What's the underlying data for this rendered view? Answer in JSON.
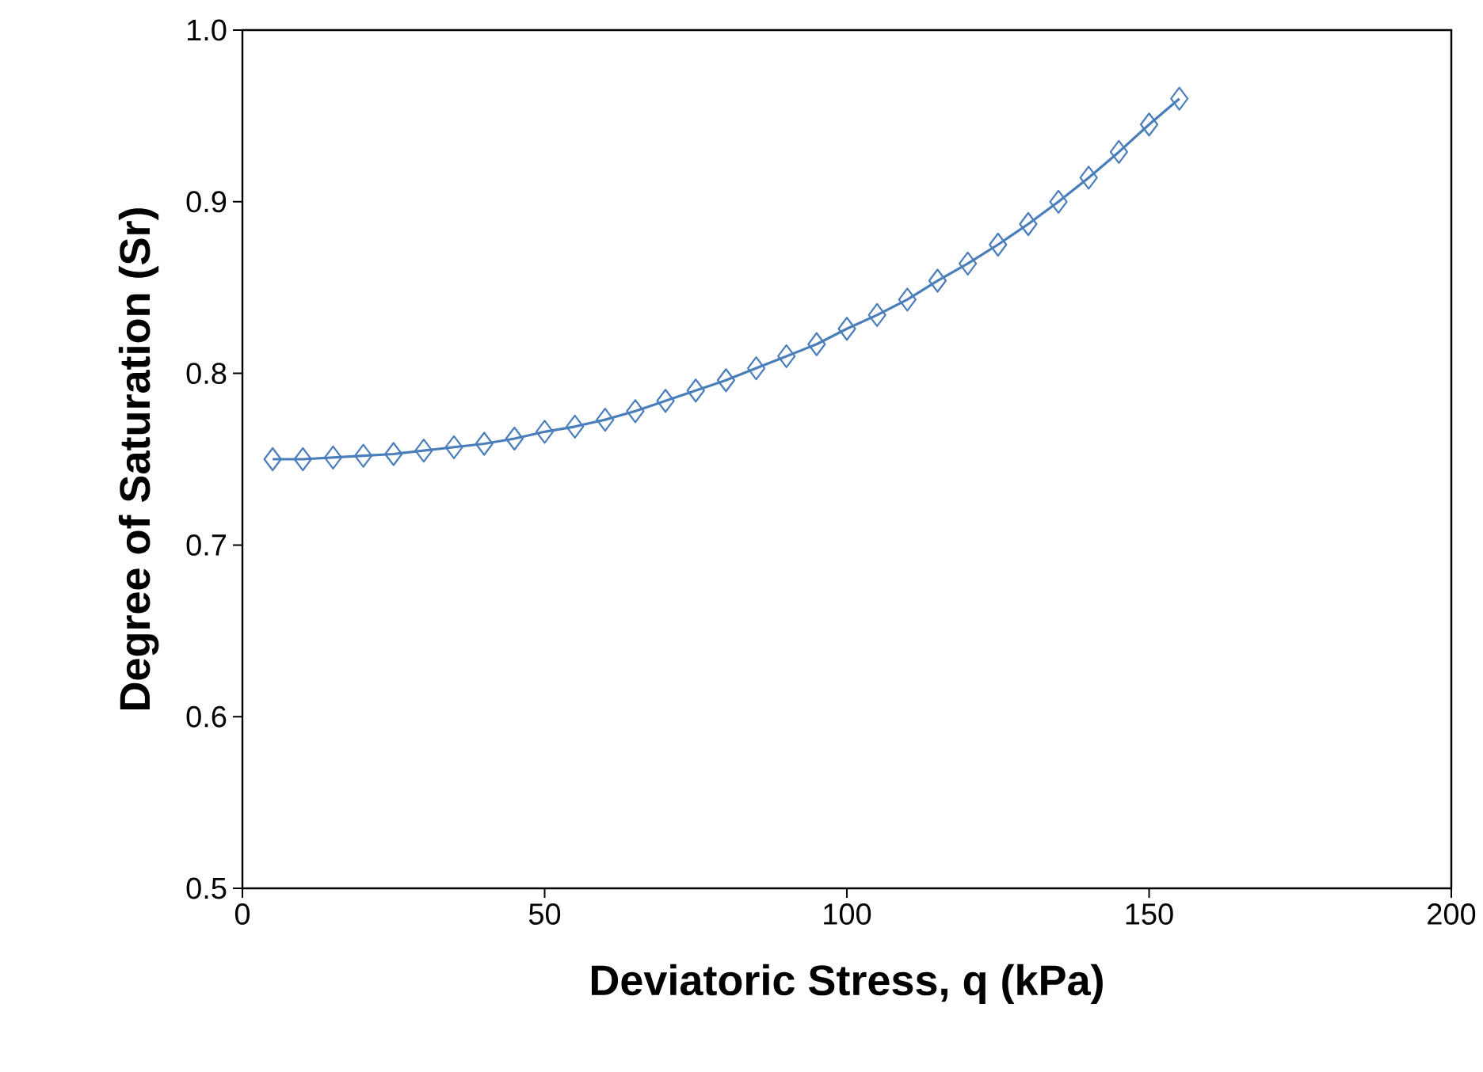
{
  "chart_data": {
    "type": "line",
    "xlabel": "Deviatoric Stress, q (kPa)",
    "ylabel": "Degree of Saturation (Sr)",
    "x": [
      5,
      10,
      15,
      20,
      25,
      30,
      35,
      40,
      45,
      50,
      55,
      60,
      65,
      70,
      75,
      80,
      85,
      90,
      95,
      100,
      105,
      110,
      115,
      120,
      125,
      130,
      135,
      140,
      145,
      150,
      155
    ],
    "series": [
      {
        "color": "#4a7ebb",
        "values": [
          0.75,
          0.75,
          0.751,
          0.752,
          0.753,
          0.755,
          0.757,
          0.759,
          0.762,
          0.766,
          0.769,
          0.773,
          0.778,
          0.784,
          0.79,
          0.796,
          0.803,
          0.81,
          0.817,
          0.826,
          0.834,
          0.843,
          0.854,
          0.864,
          0.875,
          0.887,
          0.9,
          0.914,
          0.929,
          0.945,
          0.96
        ]
      }
    ],
    "xlim": [
      0,
      200
    ],
    "ylim": [
      0.5,
      1.0
    ],
    "xticks": [
      0,
      50,
      100,
      150,
      200
    ],
    "yticks": [
      {
        "value": 0.5,
        "label": "0.5"
      },
      {
        "value": 0.6,
        "label": "0.6"
      },
      {
        "value": 0.7,
        "label": "0.7"
      },
      {
        "value": 0.8,
        "label": "0.8"
      },
      {
        "value": 0.9,
        "label": "0.9"
      },
      {
        "value": 1.0,
        "label": "1.0"
      }
    ],
    "marker": "diamond",
    "line_style": "solid"
  }
}
